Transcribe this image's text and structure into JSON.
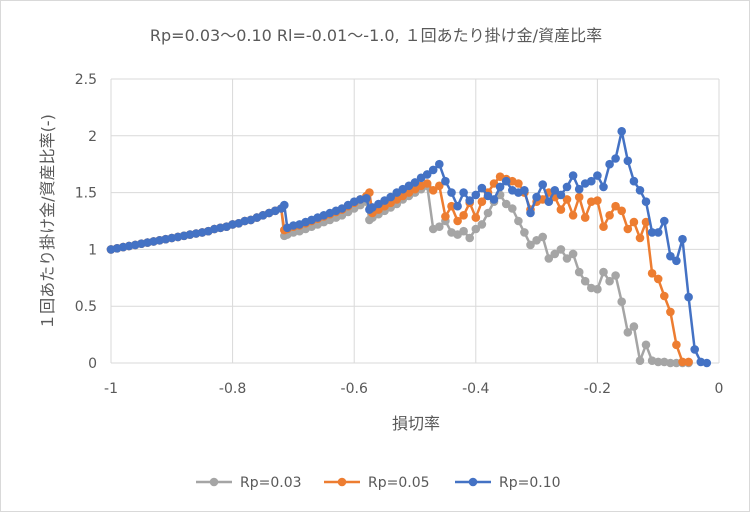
{
  "chart_data": {
    "type": "line",
    "title": "Rp=0.03〜0.10 Rl=-0.01〜-1.0, １回あたり掛け金/資産比率",
    "xlabel": "損切率",
    "ylabel": "１回あたり掛け金/資産比率(-)",
    "xlim": [
      -1,
      0
    ],
    "ylim": [
      0,
      2.5
    ],
    "x_ticks": [
      "-1",
      "-0.8",
      "-0.6",
      "-0.4",
      "-0.2",
      "0"
    ],
    "y_ticks": [
      "0",
      "0.5",
      "1",
      "1.5",
      "2",
      "2.5"
    ],
    "grid": true,
    "legend_position": "bottom",
    "series": [
      {
        "name": "Rp=0.03",
        "color": "#a5a5a5",
        "points": [
          [
            -1.0,
            1.0
          ],
          [
            -0.99,
            1.01
          ],
          [
            -0.98,
            1.02
          ],
          [
            -0.97,
            1.03
          ],
          [
            -0.96,
            1.04
          ],
          [
            -0.95,
            1.05
          ],
          [
            -0.94,
            1.06
          ],
          [
            -0.93,
            1.07
          ],
          [
            -0.92,
            1.08
          ],
          [
            -0.91,
            1.09
          ],
          [
            -0.9,
            1.1
          ],
          [
            -0.89,
            1.11
          ],
          [
            -0.88,
            1.12
          ],
          [
            -0.87,
            1.13
          ],
          [
            -0.86,
            1.14
          ],
          [
            -0.85,
            1.15
          ],
          [
            -0.84,
            1.16
          ],
          [
            -0.83,
            1.18
          ],
          [
            -0.82,
            1.19
          ],
          [
            -0.81,
            1.2
          ],
          [
            -0.8,
            1.22
          ],
          [
            -0.79,
            1.23
          ],
          [
            -0.78,
            1.25
          ],
          [
            -0.77,
            1.26
          ],
          [
            -0.76,
            1.28
          ],
          [
            -0.75,
            1.3
          ],
          [
            -0.74,
            1.32
          ],
          [
            -0.73,
            1.34
          ],
          [
            -0.72,
            1.36
          ],
          [
            -0.715,
            1.12
          ],
          [
            -0.71,
            1.13
          ],
          [
            -0.7,
            1.15
          ],
          [
            -0.69,
            1.16
          ],
          [
            -0.68,
            1.18
          ],
          [
            -0.67,
            1.2
          ],
          [
            -0.66,
            1.22
          ],
          [
            -0.65,
            1.24
          ],
          [
            -0.64,
            1.26
          ],
          [
            -0.63,
            1.28
          ],
          [
            -0.62,
            1.3
          ],
          [
            -0.61,
            1.33
          ],
          [
            -0.6,
            1.36
          ],
          [
            -0.59,
            1.39
          ],
          [
            -0.58,
            1.42
          ],
          [
            -0.575,
            1.26
          ],
          [
            -0.57,
            1.28
          ],
          [
            -0.56,
            1.31
          ],
          [
            -0.55,
            1.34
          ],
          [
            -0.54,
            1.37
          ],
          [
            -0.53,
            1.4
          ],
          [
            -0.52,
            1.44
          ],
          [
            -0.51,
            1.47
          ],
          [
            -0.5,
            1.5
          ],
          [
            -0.49,
            1.53
          ],
          [
            -0.48,
            1.56
          ],
          [
            -0.47,
            1.18
          ],
          [
            -0.46,
            1.2
          ],
          [
            -0.45,
            1.25
          ],
          [
            -0.44,
            1.15
          ],
          [
            -0.43,
            1.13
          ],
          [
            -0.42,
            1.16
          ],
          [
            -0.41,
            1.1
          ],
          [
            -0.4,
            1.18
          ],
          [
            -0.39,
            1.22
          ],
          [
            -0.38,
            1.32
          ],
          [
            -0.37,
            1.42
          ],
          [
            -0.36,
            1.48
          ],
          [
            -0.35,
            1.4
          ],
          [
            -0.34,
            1.36
          ],
          [
            -0.33,
            1.25
          ],
          [
            -0.32,
            1.15
          ],
          [
            -0.31,
            1.04
          ],
          [
            -0.3,
            1.08
          ],
          [
            -0.29,
            1.11
          ],
          [
            -0.28,
            0.92
          ],
          [
            -0.27,
            0.96
          ],
          [
            -0.26,
            1.0
          ],
          [
            -0.25,
            0.92
          ],
          [
            -0.24,
            0.96
          ],
          [
            -0.23,
            0.8
          ],
          [
            -0.22,
            0.72
          ],
          [
            -0.21,
            0.66
          ],
          [
            -0.2,
            0.65
          ],
          [
            -0.19,
            0.8
          ],
          [
            -0.18,
            0.72
          ],
          [
            -0.17,
            0.77
          ],
          [
            -0.16,
            0.54
          ],
          [
            -0.15,
            0.27
          ],
          [
            -0.14,
            0.32
          ],
          [
            -0.13,
            0.02
          ],
          [
            -0.12,
            0.16
          ],
          [
            -0.11,
            0.02
          ],
          [
            -0.1,
            0.01
          ],
          [
            -0.09,
            0.01
          ],
          [
            -0.08,
            0.0
          ],
          [
            -0.07,
            0.0
          ],
          [
            -0.06,
            0.0
          ],
          [
            -0.05,
            0.0
          ]
        ]
      },
      {
        "name": "Rp=0.05",
        "color": "#ed7d31",
        "points": [
          [
            -1.0,
            1.0
          ],
          [
            -0.99,
            1.01
          ],
          [
            -0.98,
            1.02
          ],
          [
            -0.97,
            1.03
          ],
          [
            -0.96,
            1.04
          ],
          [
            -0.95,
            1.05
          ],
          [
            -0.94,
            1.06
          ],
          [
            -0.93,
            1.07
          ],
          [
            -0.92,
            1.08
          ],
          [
            -0.91,
            1.09
          ],
          [
            -0.9,
            1.1
          ],
          [
            -0.89,
            1.11
          ],
          [
            -0.88,
            1.12
          ],
          [
            -0.87,
            1.13
          ],
          [
            -0.86,
            1.14
          ],
          [
            -0.85,
            1.15
          ],
          [
            -0.84,
            1.16
          ],
          [
            -0.83,
            1.18
          ],
          [
            -0.82,
            1.19
          ],
          [
            -0.81,
            1.2
          ],
          [
            -0.8,
            1.22
          ],
          [
            -0.79,
            1.23
          ],
          [
            -0.78,
            1.25
          ],
          [
            -0.77,
            1.26
          ],
          [
            -0.76,
            1.28
          ],
          [
            -0.75,
            1.3
          ],
          [
            -0.74,
            1.32
          ],
          [
            -0.73,
            1.34
          ],
          [
            -0.72,
            1.36
          ],
          [
            -0.715,
            1.17
          ],
          [
            -0.71,
            1.18
          ],
          [
            -0.7,
            1.2
          ],
          [
            -0.69,
            1.21
          ],
          [
            -0.68,
            1.23
          ],
          [
            -0.67,
            1.25
          ],
          [
            -0.66,
            1.27
          ],
          [
            -0.65,
            1.29
          ],
          [
            -0.64,
            1.31
          ],
          [
            -0.63,
            1.33
          ],
          [
            -0.62,
            1.35
          ],
          [
            -0.61,
            1.38
          ],
          [
            -0.6,
            1.41
          ],
          [
            -0.59,
            1.44
          ],
          [
            -0.58,
            1.47
          ],
          [
            -0.575,
            1.5
          ],
          [
            -0.57,
            1.32
          ],
          [
            -0.56,
            1.35
          ],
          [
            -0.55,
            1.38
          ],
          [
            -0.54,
            1.41
          ],
          [
            -0.53,
            1.44
          ],
          [
            -0.52,
            1.47
          ],
          [
            -0.51,
            1.5
          ],
          [
            -0.5,
            1.53
          ],
          [
            -0.49,
            1.56
          ],
          [
            -0.48,
            1.58
          ],
          [
            -0.47,
            1.52
          ],
          [
            -0.46,
            1.56
          ],
          [
            -0.45,
            1.29
          ],
          [
            -0.44,
            1.38
          ],
          [
            -0.43,
            1.25
          ],
          [
            -0.42,
            1.3
          ],
          [
            -0.41,
            1.41
          ],
          [
            -0.4,
            1.28
          ],
          [
            -0.39,
            1.42
          ],
          [
            -0.38,
            1.5
          ],
          [
            -0.37,
            1.58
          ],
          [
            -0.36,
            1.64
          ],
          [
            -0.35,
            1.62
          ],
          [
            -0.34,
            1.6
          ],
          [
            -0.33,
            1.58
          ],
          [
            -0.32,
            1.5
          ],
          [
            -0.31,
            1.35
          ],
          [
            -0.3,
            1.42
          ],
          [
            -0.29,
            1.44
          ],
          [
            -0.28,
            1.5
          ],
          [
            -0.27,
            1.46
          ],
          [
            -0.26,
            1.35
          ],
          [
            -0.25,
            1.44
          ],
          [
            -0.24,
            1.3
          ],
          [
            -0.23,
            1.46
          ],
          [
            -0.22,
            1.28
          ],
          [
            -0.21,
            1.42
          ],
          [
            -0.2,
            1.43
          ],
          [
            -0.19,
            1.2
          ],
          [
            -0.18,
            1.3
          ],
          [
            -0.17,
            1.38
          ],
          [
            -0.16,
            1.34
          ],
          [
            -0.15,
            1.18
          ],
          [
            -0.14,
            1.24
          ],
          [
            -0.13,
            1.1
          ],
          [
            -0.12,
            1.24
          ],
          [
            -0.11,
            0.79
          ],
          [
            -0.1,
            0.74
          ],
          [
            -0.09,
            0.59
          ],
          [
            -0.08,
            0.45
          ],
          [
            -0.07,
            0.16
          ],
          [
            -0.06,
            0.01
          ],
          [
            -0.05,
            0.01
          ]
        ]
      },
      {
        "name": "Rp=0.10",
        "color": "#4472c4",
        "points": [
          [
            -1.0,
            1.0
          ],
          [
            -0.99,
            1.01
          ],
          [
            -0.98,
            1.02
          ],
          [
            -0.97,
            1.03
          ],
          [
            -0.96,
            1.04
          ],
          [
            -0.95,
            1.05
          ],
          [
            -0.94,
            1.06
          ],
          [
            -0.93,
            1.07
          ],
          [
            -0.92,
            1.08
          ],
          [
            -0.91,
            1.09
          ],
          [
            -0.9,
            1.1
          ],
          [
            -0.89,
            1.11
          ],
          [
            -0.88,
            1.12
          ],
          [
            -0.87,
            1.13
          ],
          [
            -0.86,
            1.14
          ],
          [
            -0.85,
            1.15
          ],
          [
            -0.84,
            1.16
          ],
          [
            -0.83,
            1.18
          ],
          [
            -0.82,
            1.19
          ],
          [
            -0.81,
            1.2
          ],
          [
            -0.8,
            1.22
          ],
          [
            -0.79,
            1.23
          ],
          [
            -0.78,
            1.25
          ],
          [
            -0.77,
            1.26
          ],
          [
            -0.76,
            1.28
          ],
          [
            -0.75,
            1.3
          ],
          [
            -0.74,
            1.32
          ],
          [
            -0.73,
            1.34
          ],
          [
            -0.72,
            1.36
          ],
          [
            -0.715,
            1.39
          ],
          [
            -0.71,
            1.19
          ],
          [
            -0.7,
            1.21
          ],
          [
            -0.69,
            1.22
          ],
          [
            -0.68,
            1.24
          ],
          [
            -0.67,
            1.26
          ],
          [
            -0.66,
            1.28
          ],
          [
            -0.65,
            1.3
          ],
          [
            -0.64,
            1.32
          ],
          [
            -0.63,
            1.34
          ],
          [
            -0.62,
            1.36
          ],
          [
            -0.61,
            1.39
          ],
          [
            -0.6,
            1.42
          ],
          [
            -0.59,
            1.44
          ],
          [
            -0.58,
            1.45
          ],
          [
            -0.575,
            1.35
          ],
          [
            -0.57,
            1.37
          ],
          [
            -0.56,
            1.4
          ],
          [
            -0.55,
            1.43
          ],
          [
            -0.54,
            1.46
          ],
          [
            -0.53,
            1.5
          ],
          [
            -0.52,
            1.53
          ],
          [
            -0.51,
            1.56
          ],
          [
            -0.5,
            1.59
          ],
          [
            -0.49,
            1.63
          ],
          [
            -0.48,
            1.66
          ],
          [
            -0.47,
            1.7
          ],
          [
            -0.46,
            1.75
          ],
          [
            -0.45,
            1.6
          ],
          [
            -0.44,
            1.5
          ],
          [
            -0.43,
            1.38
          ],
          [
            -0.42,
            1.5
          ],
          [
            -0.41,
            1.43
          ],
          [
            -0.4,
            1.48
          ],
          [
            -0.39,
            1.54
          ],
          [
            -0.38,
            1.47
          ],
          [
            -0.37,
            1.44
          ],
          [
            -0.36,
            1.55
          ],
          [
            -0.35,
            1.6
          ],
          [
            -0.34,
            1.52
          ],
          [
            -0.33,
            1.5
          ],
          [
            -0.32,
            1.52
          ],
          [
            -0.31,
            1.32
          ],
          [
            -0.3,
            1.46
          ],
          [
            -0.29,
            1.57
          ],
          [
            -0.28,
            1.42
          ],
          [
            -0.27,
            1.52
          ],
          [
            -0.26,
            1.48
          ],
          [
            -0.25,
            1.55
          ],
          [
            -0.24,
            1.65
          ],
          [
            -0.23,
            1.53
          ],
          [
            -0.22,
            1.58
          ],
          [
            -0.21,
            1.6
          ],
          [
            -0.2,
            1.65
          ],
          [
            -0.19,
            1.55
          ],
          [
            -0.18,
            1.75
          ],
          [
            -0.17,
            1.8
          ],
          [
            -0.16,
            2.04
          ],
          [
            -0.15,
            1.78
          ],
          [
            -0.14,
            1.6
          ],
          [
            -0.13,
            1.52
          ],
          [
            -0.12,
            1.42
          ],
          [
            -0.11,
            1.15
          ],
          [
            -0.1,
            1.15
          ],
          [
            -0.09,
            1.25
          ],
          [
            -0.08,
            0.94
          ],
          [
            -0.07,
            0.9
          ],
          [
            -0.06,
            1.09
          ],
          [
            -0.05,
            0.58
          ],
          [
            -0.04,
            0.12
          ],
          [
            -0.03,
            0.01
          ],
          [
            -0.02,
            0.0
          ]
        ]
      }
    ]
  }
}
